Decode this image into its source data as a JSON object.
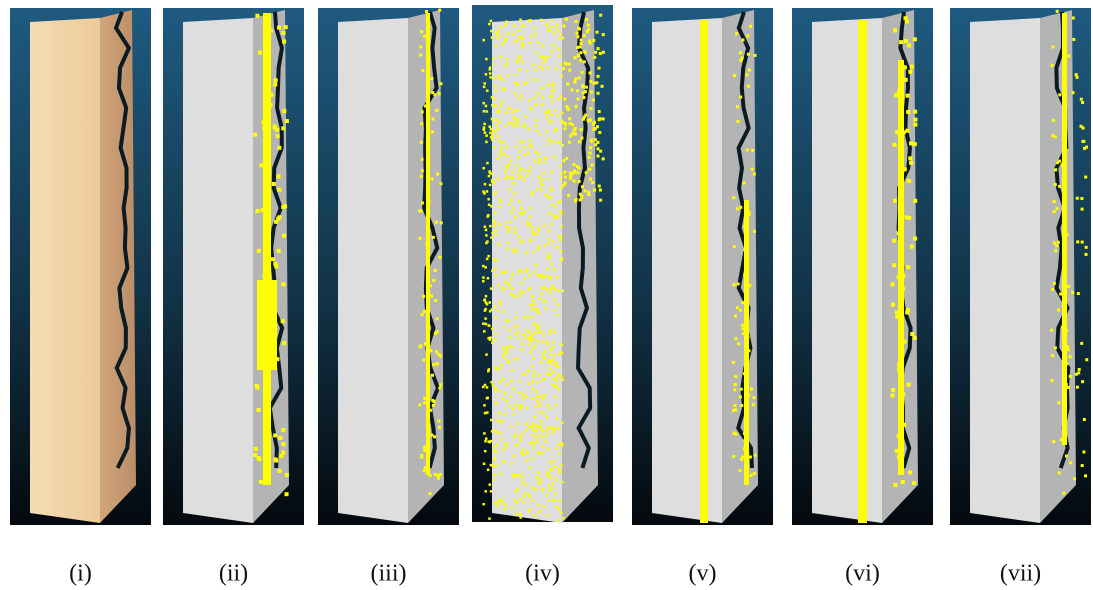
{
  "panels": [
    {
      "label": "(i)"
    },
    {
      "label": "(ii)"
    },
    {
      "label": "(iii)"
    },
    {
      "label": "(iv)"
    },
    {
      "label": "(v)"
    },
    {
      "label": "(vi)"
    },
    {
      "label": "(vii)"
    }
  ]
}
